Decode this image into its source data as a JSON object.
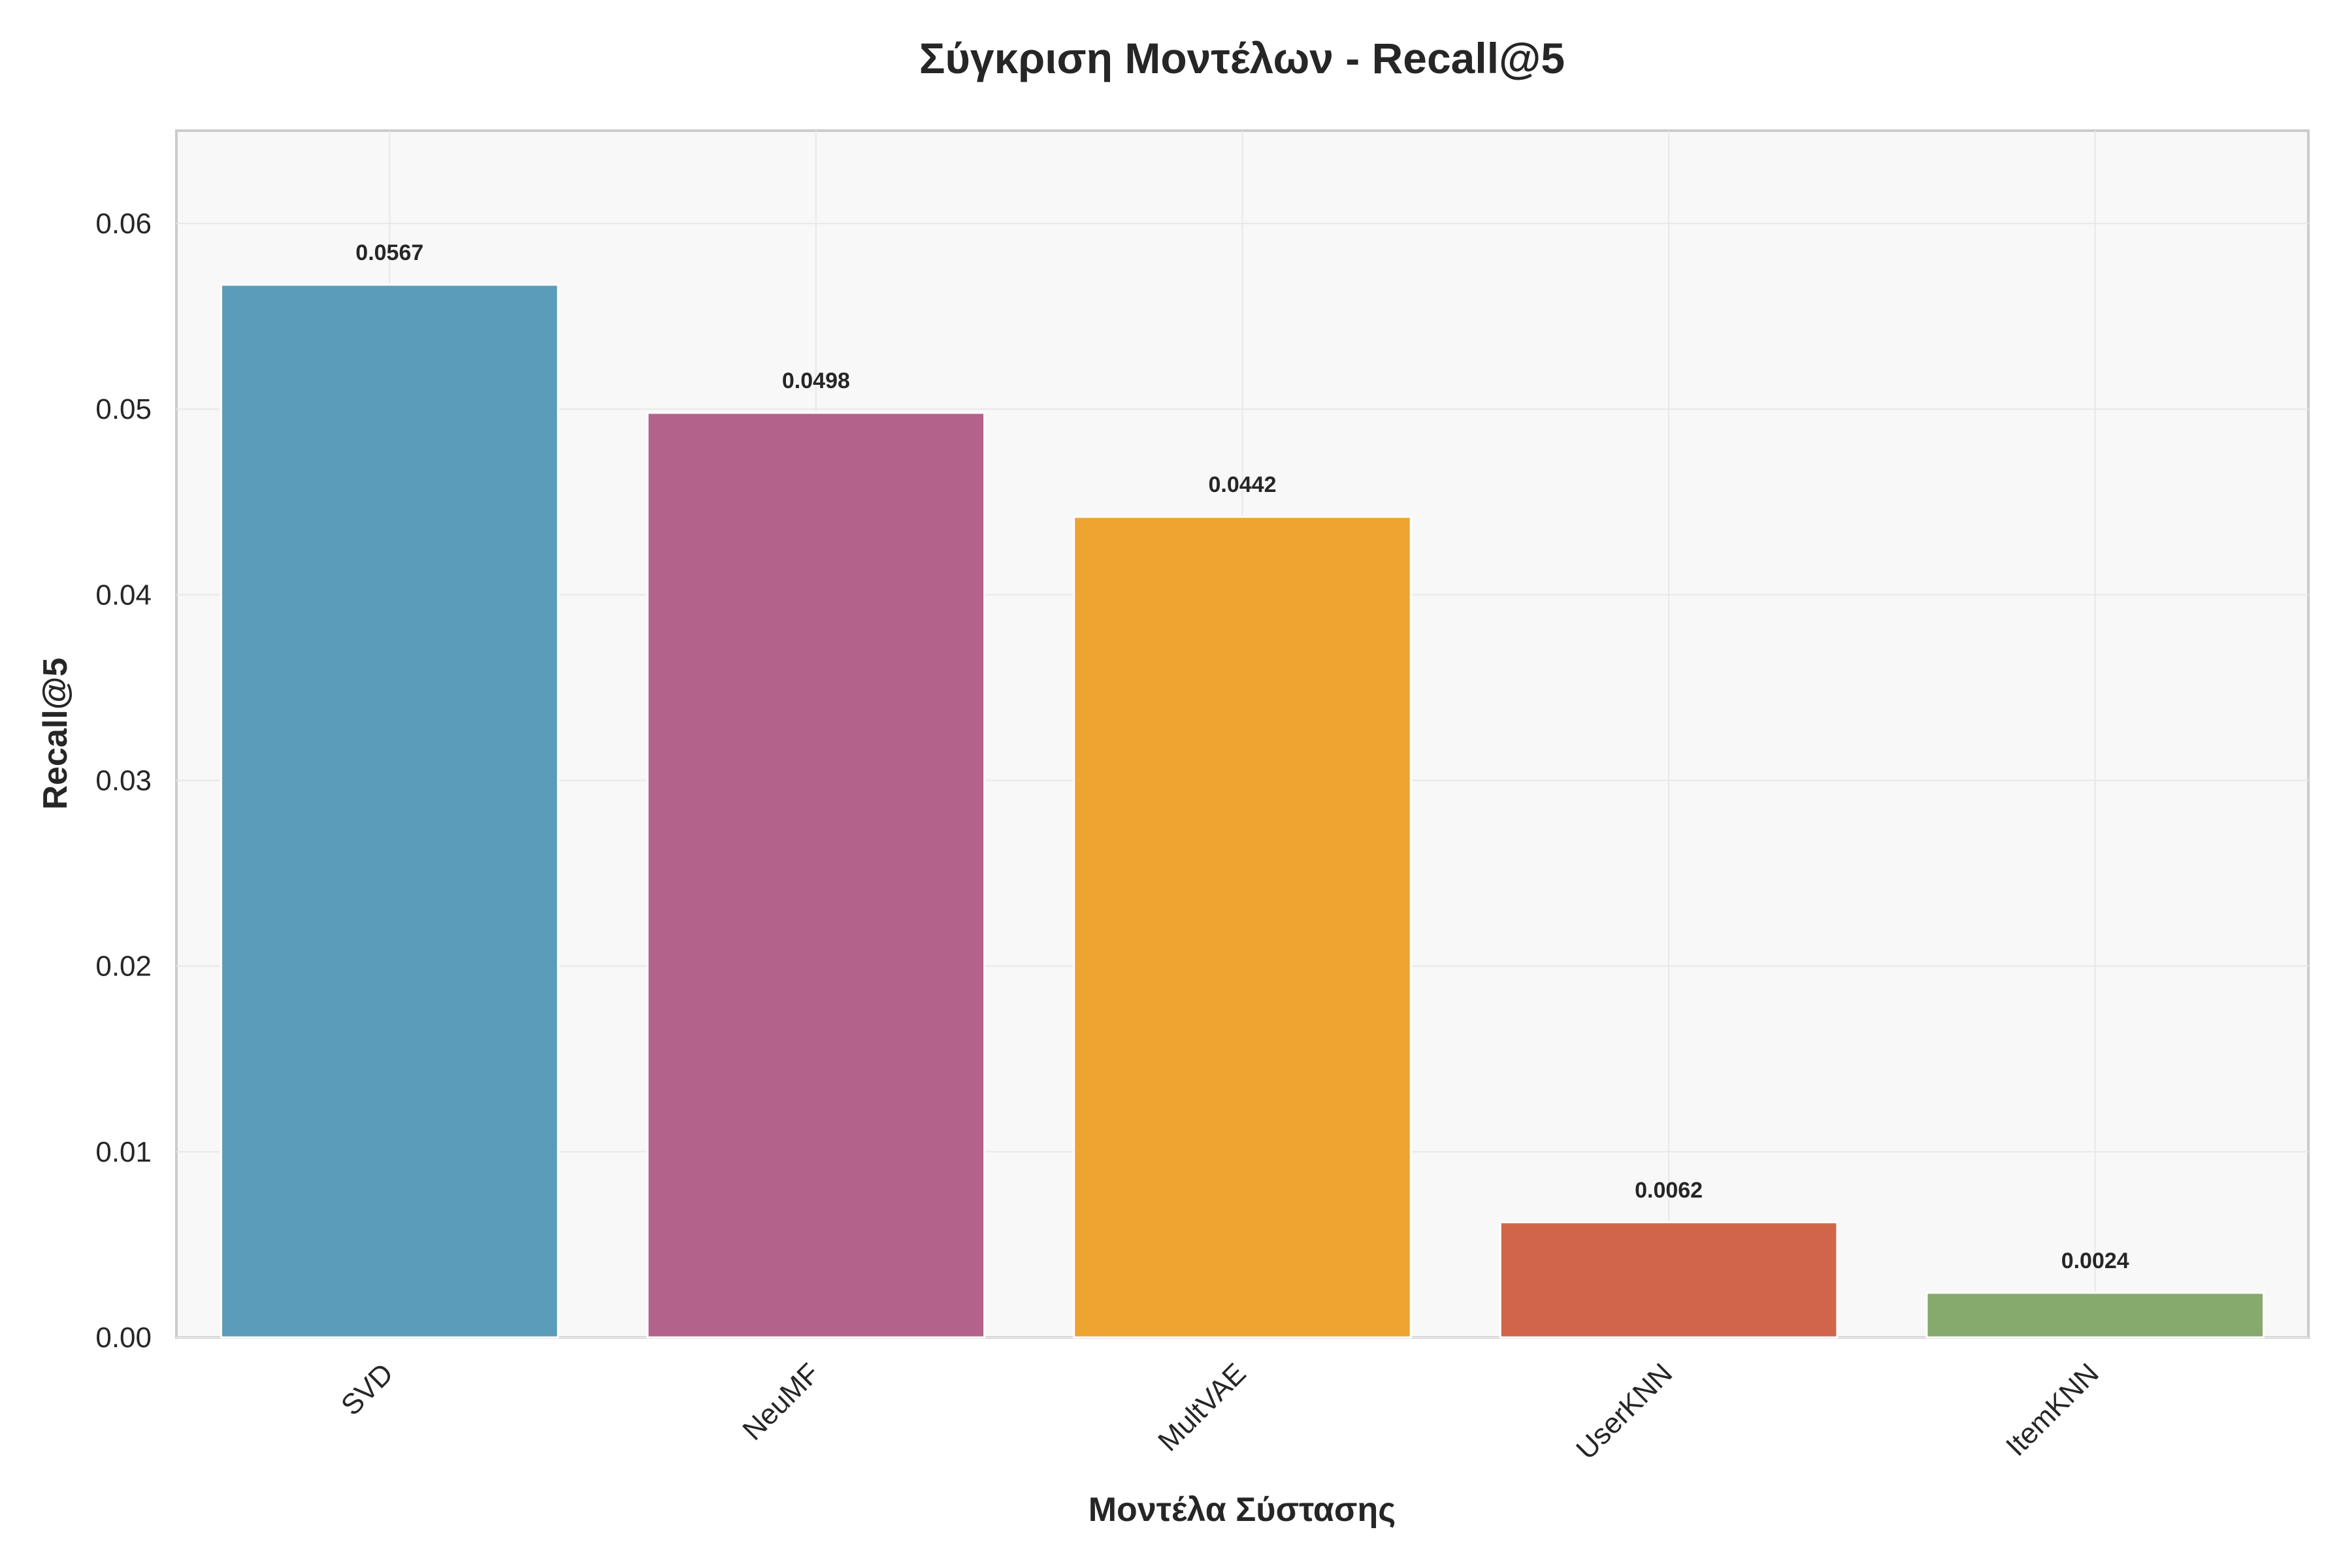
{
  "chart_data": {
    "type": "bar",
    "title": "Σύγκριση Μοντέλων - Recall@5",
    "xlabel": "Μοντέλα Σύστασης",
    "ylabel": "Recall@5",
    "categories": [
      "SVD",
      "NeuMF",
      "MultVAE",
      "UserKNN",
      "ItemKNN"
    ],
    "values": [
      0.0567,
      0.0498,
      0.0442,
      0.0062,
      0.0024
    ],
    "value_labels": [
      "0.0567",
      "0.0498",
      "0.0442",
      "0.0062",
      "0.0024"
    ],
    "colors": [
      "#5a9cba",
      "#b3628c",
      "#efa432",
      "#d1654a",
      "#86a96d"
    ],
    "ylim": [
      0,
      0.065
    ],
    "yticks": [
      0,
      0.01,
      0.02,
      0.03,
      0.04,
      0.05,
      0.06
    ],
    "ytick_labels": [
      "0.00",
      "0.01",
      "0.02",
      "0.03",
      "0.04",
      "0.05",
      "0.06"
    ],
    "grid": true,
    "legend": "none"
  }
}
